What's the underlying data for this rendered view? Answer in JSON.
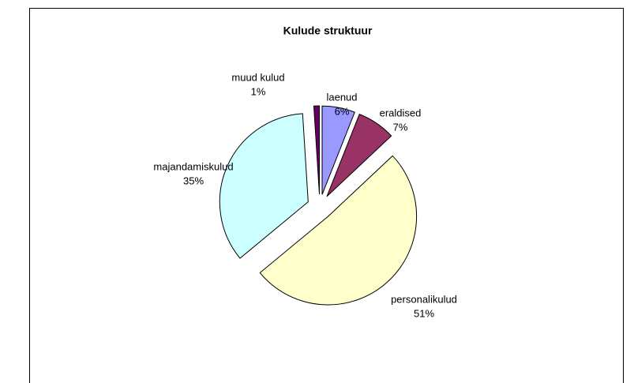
{
  "chart_data": {
    "type": "pie",
    "title": "Kulude struktuur",
    "categories": [
      "laenud",
      "eraldised",
      "personalikulud",
      "majandamiskulud",
      "muud kulud"
    ],
    "values": [
      6,
      7,
      51,
      35,
      1
    ],
    "value_labels": [
      "6%",
      "7%",
      "51%",
      "35%",
      "1%"
    ],
    "colors": [
      "#9999ff",
      "#993366",
      "#ffffcc",
      "#ccffff",
      "#660066"
    ]
  }
}
